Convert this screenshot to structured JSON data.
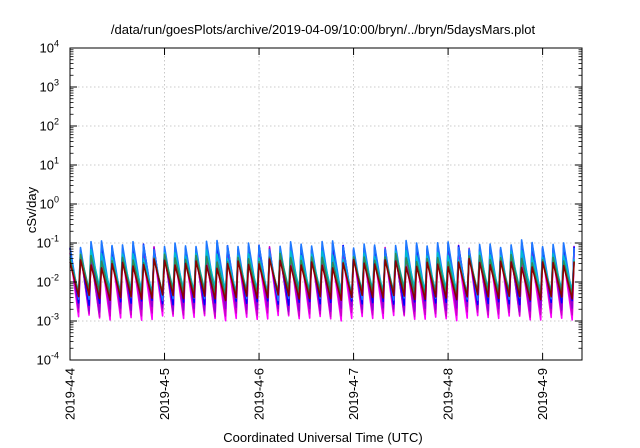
{
  "chart_data": {
    "type": "line",
    "title": "/data/run/goesPlots/archive/2019-04-09/10:00/bryn/../bryn/5daysMars.plot",
    "xlabel": "Coordinated Universal Time (UTC)",
    "ylabel": "cSv/day",
    "yscale": "log",
    "ylim": [
      0.0001,
      10000
    ],
    "y_ticks": [
      {
        "base": "10",
        "exp": "-4",
        "value": 0.0001
      },
      {
        "base": "10",
        "exp": "-3",
        "value": 0.001
      },
      {
        "base": "10",
        "exp": "-2",
        "value": 0.01
      },
      {
        "base": "10",
        "exp": "-1",
        "value": 0.1
      },
      {
        "base": "10",
        "exp": "0",
        "value": 1
      },
      {
        "base": "10",
        "exp": "1",
        "value": 10
      },
      {
        "base": "10",
        "exp": "2",
        "value": 100
      },
      {
        "base": "10",
        "exp": "3",
        "value": 1000
      },
      {
        "base": "10",
        "exp": "4",
        "value": 10000
      }
    ],
    "xlim": [
      "2019-04-04 00:00",
      "2019-04-09 10:00"
    ],
    "x_ticks": [
      "2019-4-4",
      "2019-4-5",
      "2019-4-6",
      "2019-4-7",
      "2019-4-8",
      "2019-4-9"
    ],
    "grid": true,
    "pattern": "sawtooth",
    "cycles_per_day": 9,
    "series": [
      {
        "color": "#ff00ff",
        "peak": 0.05,
        "trough": 0.0012
      },
      {
        "color": "#cc00cc",
        "peak": 0.06,
        "trough": 0.0015
      },
      {
        "color": "#9400d3",
        "peak": 0.065,
        "trough": 0.002
      },
      {
        "color": "#0000ff",
        "peak": 0.075,
        "trough": 0.003
      },
      {
        "color": "#1e78ff",
        "peak": 0.09,
        "trough": 0.004
      },
      {
        "color": "#00bcd4",
        "peak": 0.05,
        "trough": 0.006
      },
      {
        "color": "#2e8b57",
        "peak": 0.04,
        "trough": 0.005
      },
      {
        "color": "#8b0000",
        "peak": 0.03,
        "trough": 0.004
      }
    ]
  }
}
